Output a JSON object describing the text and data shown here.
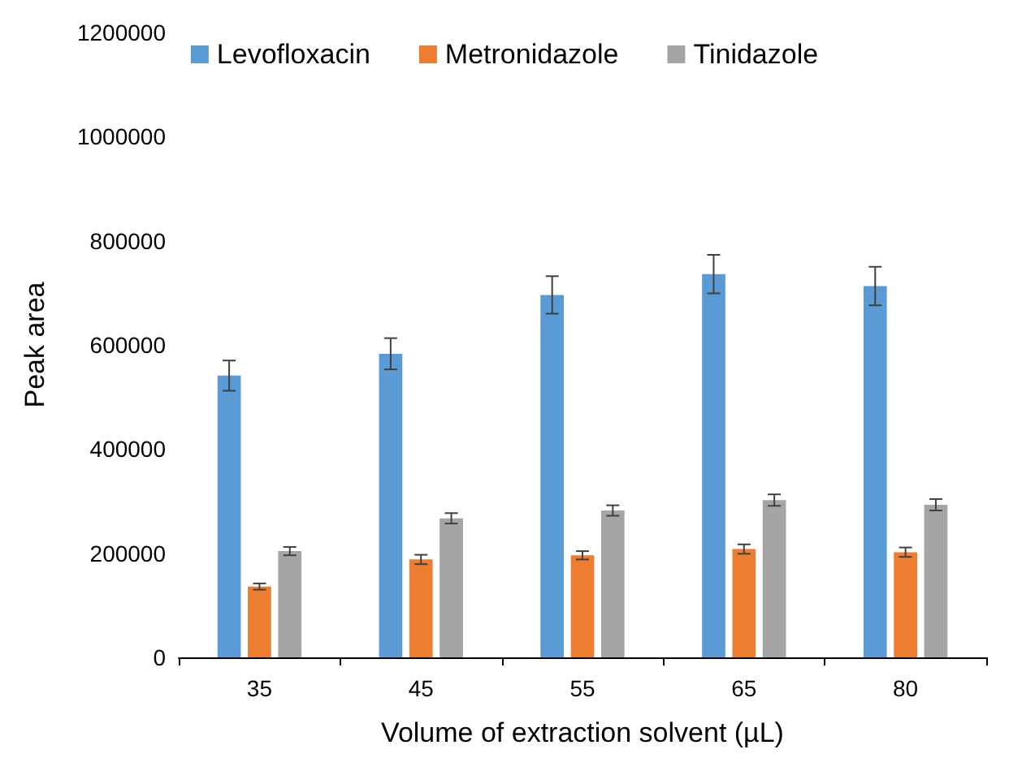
{
  "chart_data": {
    "type": "bar",
    "xlabel": "Volume of extraction solvent (µL)",
    "ylabel": "Peak area",
    "categories": [
      "35",
      "45",
      "55",
      "65",
      "80"
    ],
    "series": [
      {
        "name": "Levofloxacin",
        "color": "#5b9bd5",
        "values": [
          541000,
          583000,
          696000,
          736000,
          713000
        ],
        "errors": [
          29000,
          30000,
          36000,
          37000,
          37000
        ]
      },
      {
        "name": "Metronidazole",
        "color": "#ed7d31",
        "values": [
          136000,
          188000,
          196000,
          208000,
          202000
        ],
        "errors": [
          6000,
          9000,
          8000,
          9000,
          9000
        ]
      },
      {
        "name": "Tinidazole",
        "color": "#a5a5a5",
        "values": [
          204000,
          267000,
          282000,
          302000,
          293000
        ],
        "errors": [
          8000,
          10000,
          10000,
          11000,
          11000
        ]
      }
    ],
    "ylim": [
      0,
      1200000
    ],
    "yticks": [
      0,
      200000,
      400000,
      600000,
      800000,
      1000000,
      1200000
    ],
    "grid": false,
    "legend": "top"
  }
}
